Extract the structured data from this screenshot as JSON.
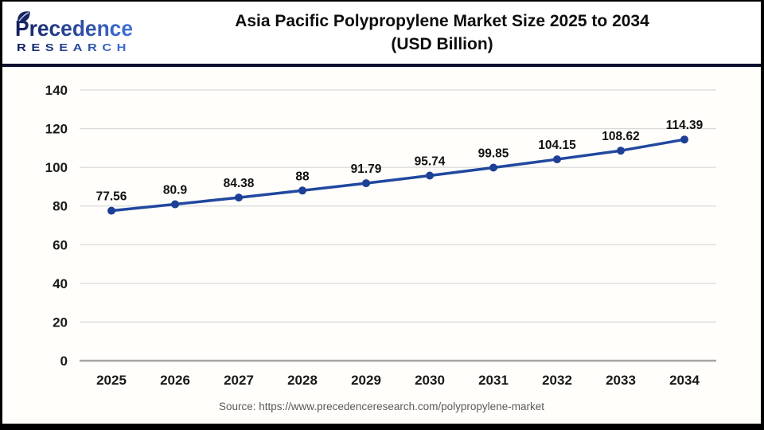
{
  "logo": {
    "brand": "Precedence",
    "subtitle": "RESEARCH"
  },
  "header": {
    "title_line1": "Asia Pacific Polypropylene Market Size 2025 to 2034",
    "title_line2": "(USD Billion)"
  },
  "footer": {
    "source": "Source: https://www.precedenceresearch.com/polypropylene-market"
  },
  "colors": {
    "accent_line": "#21489f",
    "marker": "#1d4096",
    "gridline": "#d9d9d9",
    "axis_baseline": "#a6a6a6",
    "header_divider": "#0a102e",
    "tick_label": "#1a1a1a",
    "data_label": "#111111",
    "source_text": "#595959",
    "logo_gradient_start": "#131f5e",
    "logo_gradient_end": "#4273d8",
    "frame_border": "#000000",
    "background": "#ffffff"
  },
  "chart_data": {
    "type": "line",
    "title": "Asia Pacific Polypropylene Market Size 2025 to 2034 (USD Billion)",
    "categories": [
      "2025",
      "2026",
      "2027",
      "2028",
      "2029",
      "2030",
      "2031",
      "2032",
      "2033",
      "2034"
    ],
    "series": [
      {
        "name": "Asia Pacific Polypropylene Market Size (USD Billion)",
        "values": [
          77.56,
          80.9,
          84.38,
          88,
          91.79,
          95.74,
          99.85,
          104.15,
          108.62,
          114.39
        ]
      }
    ],
    "xlabel": "",
    "ylabel": "",
    "ylim": [
      0,
      140
    ],
    "ytick_step": 20,
    "grid": true,
    "legend_position": "none",
    "data_labels_visible": true
  }
}
